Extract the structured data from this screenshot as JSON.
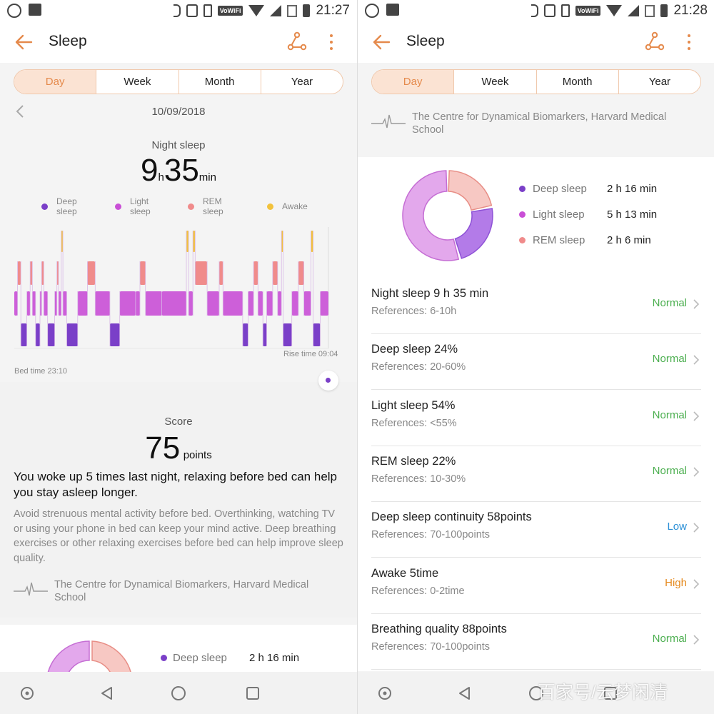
{
  "colors": {
    "accent": "#e58a4c",
    "deep": "#7a3fc8",
    "light": "#c94fd6",
    "rem": "#f08b8b",
    "awake": "#f2c23c",
    "normal": "#4caf50",
    "low": "#2a8fd6",
    "high": "#e58a1f"
  },
  "left": {
    "status": {
      "time": "21:27",
      "vowifi": "VoWiFi"
    },
    "appbar": {
      "title": "Sleep"
    },
    "tabs": [
      {
        "label": "Day",
        "active": true
      },
      {
        "label": "Week",
        "active": false
      },
      {
        "label": "Month",
        "active": false
      },
      {
        "label": "Year",
        "active": false
      }
    ],
    "date": "10/09/2018",
    "night": {
      "label": "Night sleep",
      "hours": "9",
      "h_unit": "h",
      "minutes": "35",
      "m_unit": "min"
    },
    "legend": [
      {
        "line1": "Deep",
        "line2": "sleep",
        "color": "#7a3fc8"
      },
      {
        "line1": "Light",
        "line2": "sleep",
        "color": "#c94fd6"
      },
      {
        "line1": "REM",
        "line2": "sleep",
        "color": "#f08b8b"
      },
      {
        "line1": "Awake",
        "line2": "",
        "color": "#f2c23c"
      }
    ],
    "bed_time": "Bed time 23:10",
    "rise_time": "Rise time 09:04",
    "score": {
      "label": "Score",
      "value": "75",
      "unit": "points"
    },
    "advice_head": "You woke up 5 times last night, relaxing before bed can help you stay asleep longer.",
    "advice_body": "Avoid strenuous mental activity before bed. Overthinking, watching TV or using your phone in bed can keep your mind active. Deep breathing exercises or other relaxing exercises before bed can help improve sleep quality.",
    "source": "The Centre for Dynamical Biomarkers, Harvard Medical School",
    "bottom_legend": {
      "label": "Deep sleep",
      "value": "2 h 16 min"
    }
  },
  "right": {
    "status": {
      "time": "21:28",
      "vowifi": "VoWiFi"
    },
    "appbar": {
      "title": "Sleep"
    },
    "tabs": [
      {
        "label": "Day",
        "active": true
      },
      {
        "label": "Week",
        "active": false
      },
      {
        "label": "Month",
        "active": false
      },
      {
        "label": "Year",
        "active": false
      }
    ],
    "source": "The Centre for Dynamical Biomarkers, Harvard Medical School",
    "breakdown": [
      {
        "label": "Deep sleep",
        "value": "2 h 16 min",
        "minutes": 136,
        "color": "#7a3fc8"
      },
      {
        "label": "Light sleep",
        "value": "5 h 13 min",
        "minutes": 313,
        "color": "#c94fd6"
      },
      {
        "label": "REM sleep",
        "value": "2 h 6 min",
        "minutes": 126,
        "color": "#f08b8b"
      }
    ],
    "metrics": [
      {
        "title": "Night sleep  9 h 35 min",
        "ref": "References: 6-10h",
        "status": "Normal",
        "color": "#4caf50"
      },
      {
        "title": "Deep sleep  24%",
        "ref": "References: 20-60%",
        "status": "Normal",
        "color": "#4caf50"
      },
      {
        "title": "Light sleep  54%",
        "ref": "References: <55%",
        "status": "Normal",
        "color": "#4caf50"
      },
      {
        "title": "REM sleep  22%",
        "ref": "References: 10-30%",
        "status": "Normal",
        "color": "#4caf50"
      },
      {
        "title": "Deep sleep continuity  58points",
        "ref": "References: 70-100points",
        "status": "Low",
        "color": "#2a8fd6"
      },
      {
        "title": "Awake  5time",
        "ref": "References: 0-2time",
        "status": "High",
        "color": "#e58a1f"
      },
      {
        "title": "Breathing quality  88points",
        "ref": "References: 70-100points",
        "status": "Normal",
        "color": "#4caf50"
      }
    ],
    "watermark": "百家号/云梦闲清"
  },
  "sleep_stages": [
    [
      "light",
      0.0,
      0.6
    ],
    [
      "rem",
      0.6,
      1.2
    ],
    [
      "deep",
      1.2,
      2.3
    ],
    [
      "light",
      2.3,
      2.9
    ],
    [
      "rem",
      2.9,
      3.3
    ],
    [
      "light",
      3.3,
      3.9
    ],
    [
      "deep",
      3.9,
      4.7
    ],
    [
      "light",
      4.7,
      5.0
    ],
    [
      "rem",
      5.0,
      5.4
    ],
    [
      "light",
      5.4,
      6.1
    ],
    [
      "deep",
      6.1,
      7.4
    ],
    [
      "light",
      7.4,
      7.8
    ],
    [
      "rem",
      7.8,
      8.1
    ],
    [
      "light",
      8.1,
      8.6
    ],
    [
      "awake",
      8.6,
      8.9
    ],
    [
      "light",
      8.9,
      9.6
    ],
    [
      "deep",
      9.6,
      11.6
    ],
    [
      "light",
      11.6,
      13.4
    ],
    [
      "rem",
      13.4,
      14.8
    ],
    [
      "light",
      14.8,
      17.5
    ],
    [
      "deep",
      17.5,
      19.3
    ],
    [
      "light",
      19.3,
      22.2
    ],
    [
      "light",
      22.2,
      23.0
    ],
    [
      "rem",
      23.0,
      24.0
    ],
    [
      "light",
      24.0,
      27.0
    ],
    [
      "light",
      27.0,
      31.5
    ],
    [
      "awake",
      31.5,
      31.9
    ],
    [
      "light",
      31.9,
      32.7
    ],
    [
      "awake",
      32.7,
      33.1
    ],
    [
      "rem",
      33.1,
      35.3
    ],
    [
      "light",
      35.3,
      37.5
    ],
    [
      "rem",
      37.5,
      38.2
    ],
    [
      "light",
      38.2,
      41.8
    ],
    [
      "deep",
      41.8,
      42.8
    ],
    [
      "light",
      42.8,
      43.8
    ],
    [
      "rem",
      43.8,
      44.6
    ],
    [
      "light",
      44.6,
      45.5
    ],
    [
      "deep",
      45.5,
      46.2
    ],
    [
      "light",
      46.2,
      47.3
    ],
    [
      "rem",
      47.3,
      48.2
    ],
    [
      "light",
      48.2,
      48.9
    ],
    [
      "awake",
      48.9,
      49.2
    ],
    [
      "deep",
      49.2,
      50.8
    ],
    [
      "light",
      50.8,
      52.0
    ],
    [
      "rem",
      52.0,
      53.0
    ],
    [
      "light",
      53.0,
      54.3
    ],
    [
      "awake",
      54.3,
      54.7
    ],
    [
      "deep",
      54.7,
      56.0
    ],
    [
      "light",
      56.0,
      57.5
    ]
  ]
}
